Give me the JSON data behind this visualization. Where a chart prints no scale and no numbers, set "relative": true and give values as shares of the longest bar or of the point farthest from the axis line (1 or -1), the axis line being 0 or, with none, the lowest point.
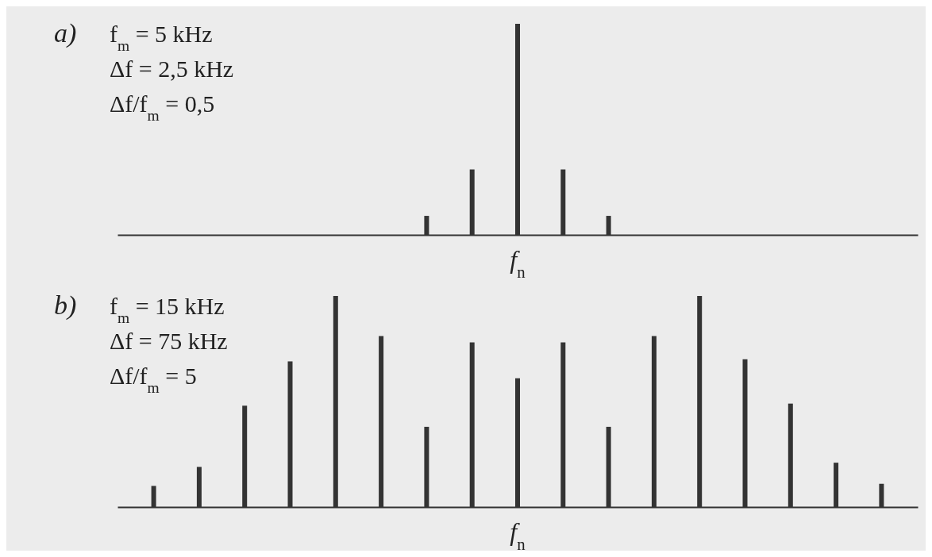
{
  "chart_data": [
    {
      "type": "bar",
      "xlabel": "f$_{n}$",
      "relative": true,
      "color": "#333333",
      "categories": [
        null,
        null,
        null,
        null,
        null
      ],
      "values": [
        0.09,
        0.31,
        1,
        0.31,
        0.09
      ],
      "annotations": [
        "a)",
        "f$_{m}$ = 5 kHz",
        "Δf = 2,5 kHz",
        "Δf/f$_{m}$ = 0,5"
      ]
    },
    {
      "type": "bar",
      "xlabel": "f$_{n}$",
      "relative": true,
      "color": "#333333",
      "categories": [
        null,
        null,
        null,
        null,
        null,
        null,
        null,
        null,
        null,
        null,
        null,
        null,
        null,
        null,
        null,
        null,
        null
      ],
      "values": [
        0.1,
        0.19,
        0.48,
        0.69,
        1,
        0.81,
        0.38,
        0.78,
        0.61,
        0.78,
        0.38,
        0.81,
        1,
        0.7,
        0.49,
        0.21,
        0.11
      ],
      "annotations": [
        "b)",
        "f$_{m}$ = 15 kHz",
        "Δf = 75 kHz",
        "Δf/f$_{m}$ = 5"
      ]
    }
  ]
}
